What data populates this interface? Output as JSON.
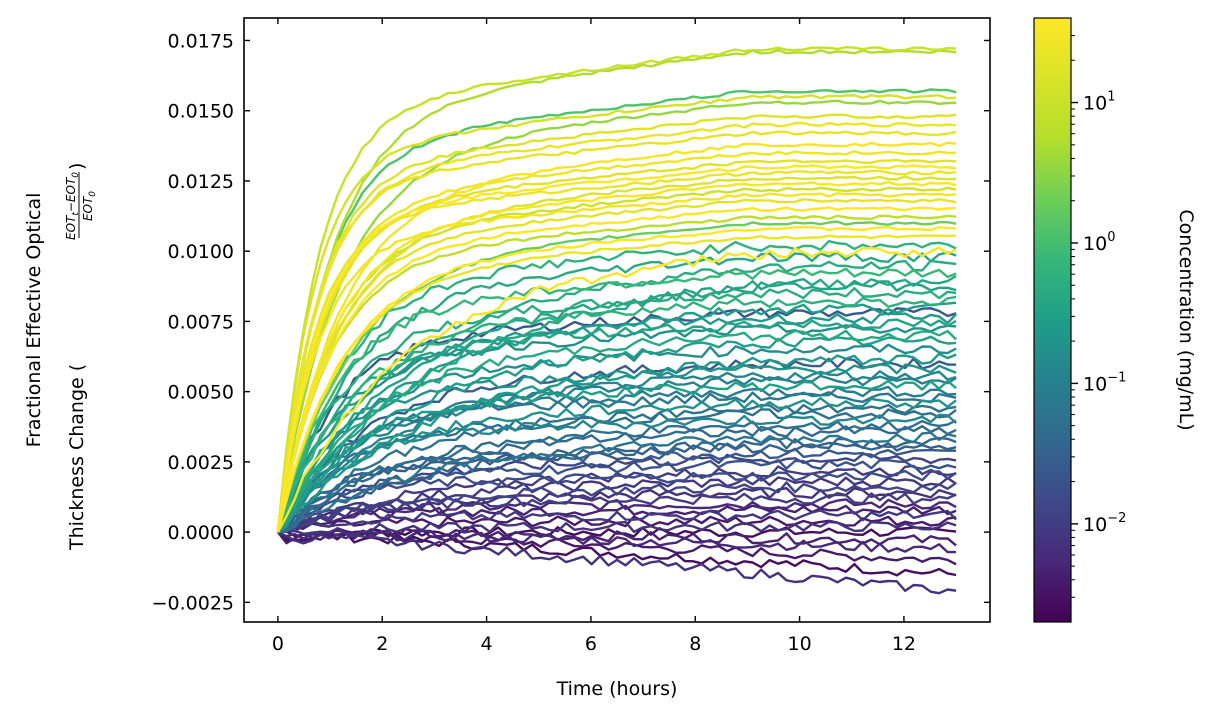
{
  "chart_data": {
    "type": "line",
    "title": "",
    "xlabel": "Time (hours)",
    "ylabel_line1": "Fractional Effective Optical",
    "ylabel_line2": "Thickness Change (",
    "ylabel_frac_num": "EOT",
    "ylabel_frac_num_sub1": "t",
    "ylabel_frac_num_mid": "−EOT",
    "ylabel_frac_num_sub2": "0",
    "ylabel_frac_den": "EOT",
    "ylabel_frac_den_sub": "0",
    "ylabel_close": ")",
    "xlim": [
      -0.65,
      13.65
    ],
    "ylim": [
      -0.0032,
      0.0183
    ],
    "xticks": [
      0,
      2,
      4,
      6,
      8,
      10,
      12
    ],
    "xtick_labels": [
      "0",
      "2",
      "4",
      "6",
      "8",
      "10",
      "12"
    ],
    "yticks": [
      -0.0025,
      0.0,
      0.0025,
      0.005,
      0.0075,
      0.01,
      0.0125,
      0.015,
      0.0175
    ],
    "ytick_labels": [
      "−0.0025",
      "0.0000",
      "0.0025",
      "0.0050",
      "0.0075",
      "0.0100",
      "0.0125",
      "0.0150",
      "0.0175"
    ],
    "grid": false,
    "series_description_values": {
      "x_range_hours": [
        0,
        13
      ],
      "plateaus": [
        0.0172,
        0.0171,
        0.0157,
        0.0155,
        0.0153,
        0.0148,
        0.0145,
        0.0142,
        0.0138,
        0.0135,
        0.0132,
        0.013,
        0.0128,
        0.0126,
        0.0124,
        0.0122,
        0.012,
        0.0118,
        0.0115,
        0.0112,
        0.011,
        0.0108,
        0.0105,
        0.0102,
        0.01,
        0.0098,
        0.0095,
        0.0092,
        0.009,
        0.0088,
        0.0085,
        0.0082,
        0.008,
        0.0078,
        0.0076,
        0.0074,
        0.0072,
        0.007,
        0.0068,
        0.0065,
        0.0062,
        0.006,
        0.0058,
        0.0056,
        0.0054,
        0.0052,
        0.005,
        0.0048,
        0.0046,
        0.0044,
        0.0042,
        0.004,
        0.0038,
        0.0036,
        0.0034,
        0.0032,
        0.003,
        0.0028,
        0.0026,
        0.0024,
        0.0022,
        0.002,
        0.0018,
        0.0016,
        0.0014,
        0.0012,
        0.001,
        0.0008,
        0.0006,
        0.0004,
        0.0002,
        0.0,
        -0.0003,
        -0.0006,
        -0.001,
        -0.0015,
        -0.0021
      ],
      "concentrations_mg_per_ml": [
        18,
        12,
        2.5,
        22,
        8,
        25,
        30,
        28,
        35,
        32,
        26,
        38,
        30,
        24,
        36,
        20,
        33,
        27,
        40,
        15,
        4,
        40,
        30,
        1.2,
        35,
        0.8,
        0.9,
        1.5,
        0.7,
        0.6,
        0.9,
        1.1,
        0.5,
        0.03,
        0.4,
        0.6,
        0.3,
        0.8,
        0.5,
        0.25,
        0.4,
        0.035,
        0.3,
        0.2,
        0.15,
        0.5,
        0.12,
        0.1,
        0.3,
        0.09,
        0.08,
        0.2,
        0.07,
        0.06,
        0.1,
        0.05,
        0.04,
        0.03,
        0.015,
        0.025,
        0.012,
        0.02,
        0.01,
        0.015,
        0.008,
        0.012,
        0.006,
        0.005,
        0.01,
        0.004,
        0.008,
        0.003,
        0.005,
        0.006,
        0.004,
        0.003,
        0.008
      ]
    },
    "colorbar": {
      "label": "Concentration (mg/mL)",
      "scale": "log",
      "colormap": "viridis",
      "range": [
        0.002,
        40
      ],
      "ticks": [
        0.01,
        0.1,
        1,
        10
      ],
      "tick_bases": [
        "10",
        "10",
        "10",
        "10"
      ],
      "tick_exponents": [
        "−2",
        "−1",
        "0",
        "1"
      ]
    }
  }
}
